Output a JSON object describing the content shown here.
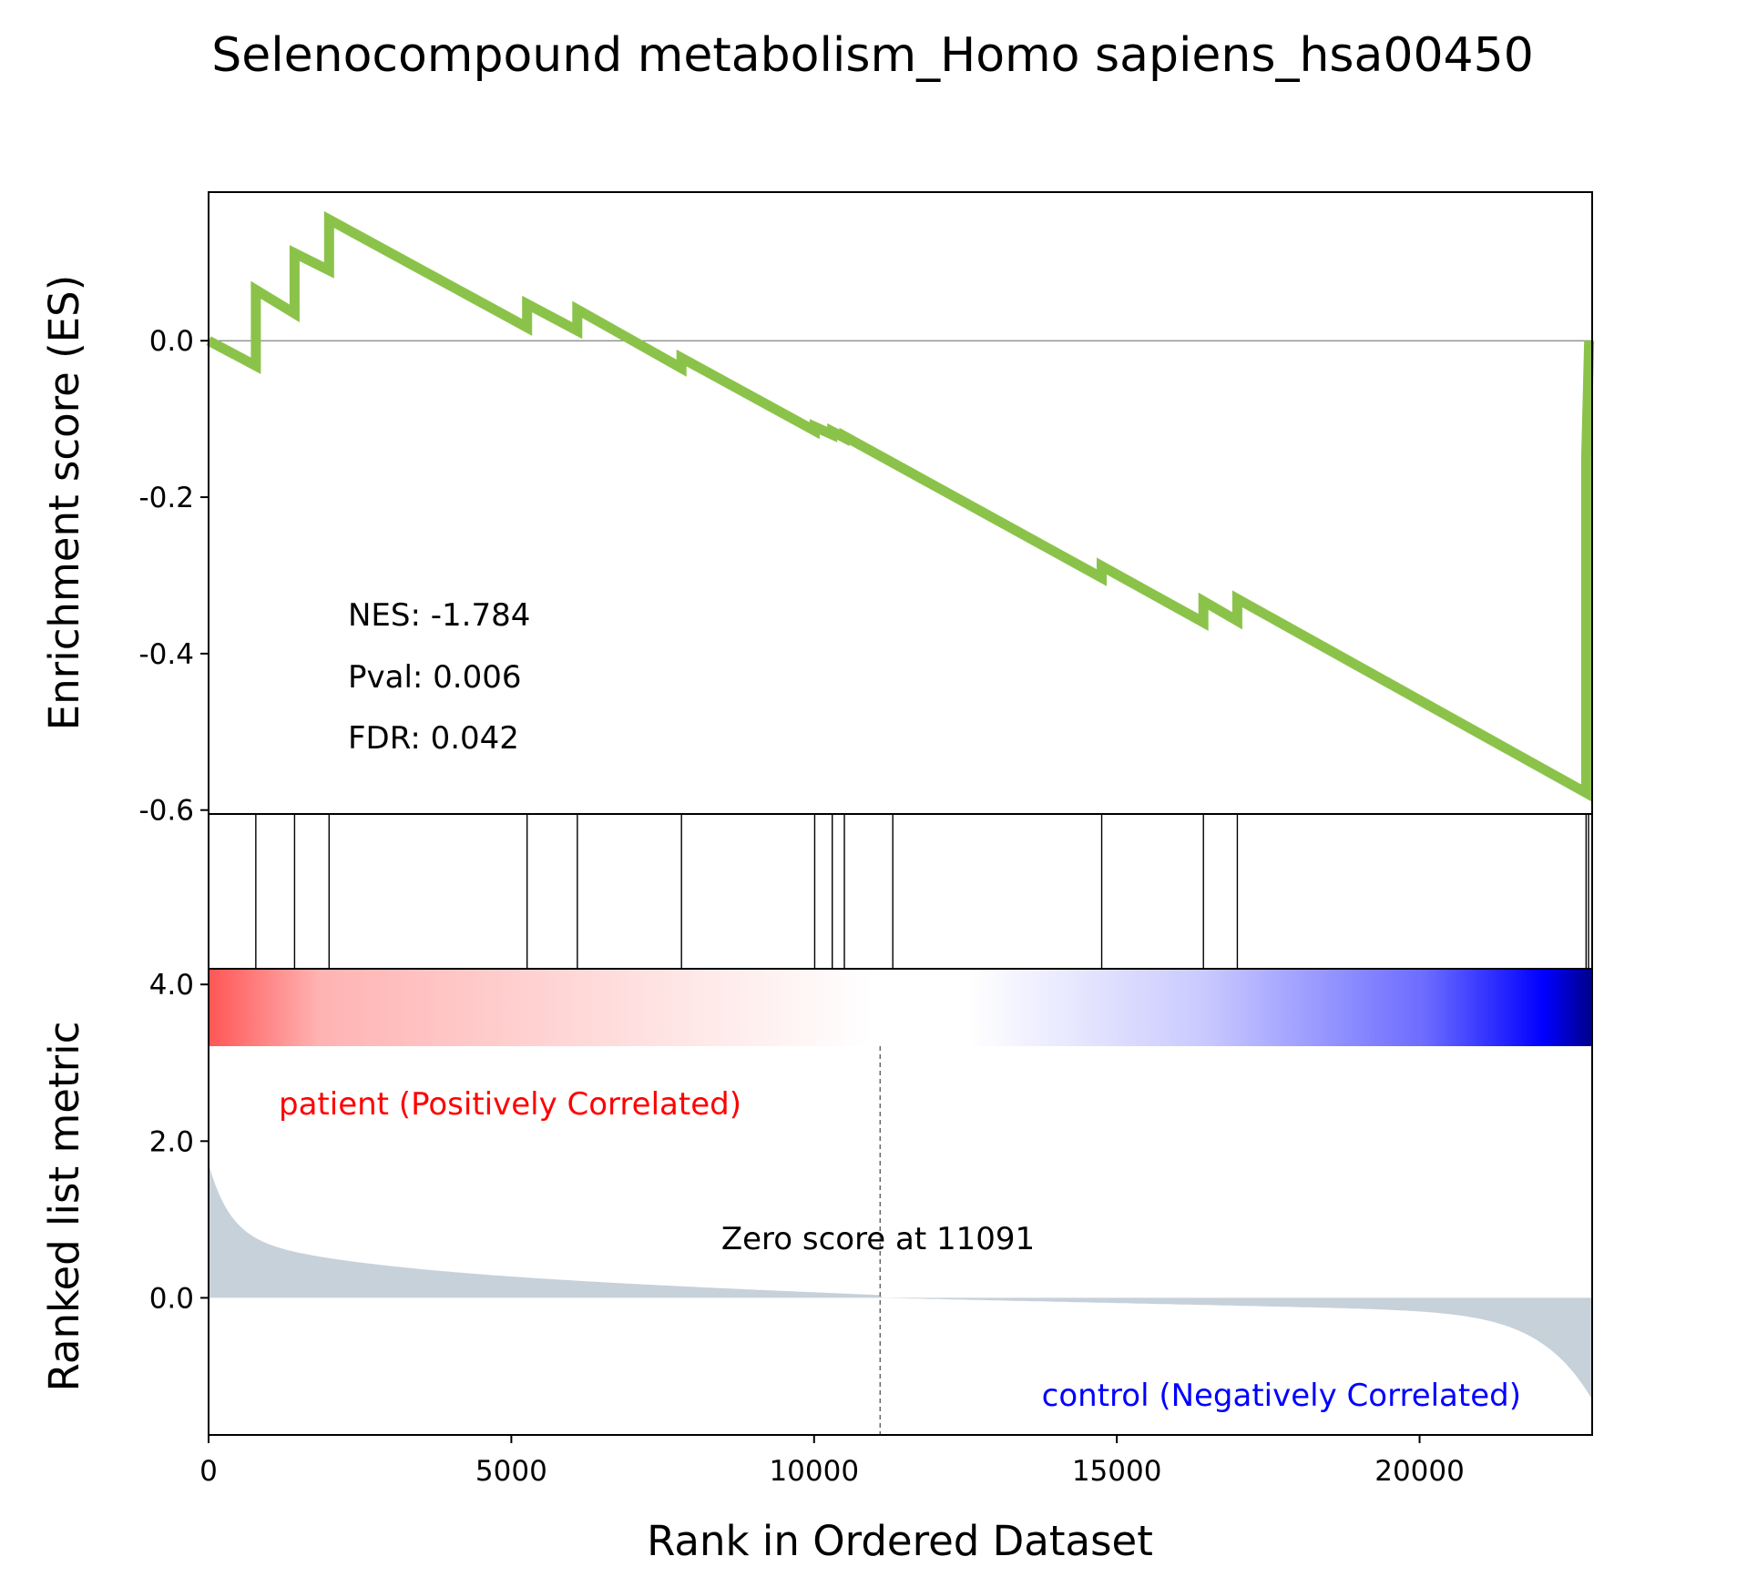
{
  "chart_data": {
    "type": "line",
    "title": "Selenocompound metabolism_Homo sapiens_hsa00450",
    "es_panel": {
      "ylabel": "Enrichment score (ES)",
      "yticks": [
        "0.0",
        "-0.2",
        "-0.4",
        "-0.6"
      ],
      "ylim": [
        -0.605,
        0.19
      ],
      "line_color": "#8bc34a",
      "series": {
        "x": [
          0,
          780,
          780,
          1420,
          1420,
          1990,
          1990,
          5260,
          5260,
          6090,
          6090,
          7810,
          7810,
          10010,
          10010,
          10300,
          10300,
          10500,
          10500,
          11300,
          11300,
          14750,
          14750,
          16430,
          16430,
          16990,
          16990,
          22750,
          22750,
          22750,
          22750,
          22800,
          22800
        ],
        "y": [
          0.0,
          -0.032,
          0.065,
          0.035,
          0.112,
          0.09,
          0.155,
          0.017,
          0.047,
          0.013,
          0.04,
          -0.035,
          -0.022,
          -0.115,
          -0.11,
          -0.12,
          -0.116,
          -0.124,
          -0.122,
          -0.156,
          -0.156,
          -0.303,
          -0.288,
          -0.36,
          -0.333,
          -0.358,
          -0.33,
          -0.578,
          -0.44,
          -0.3,
          -0.15,
          0.0,
          0.0
        ]
      },
      "stats": {
        "nes": "NES: -1.784",
        "pval": "Pval: 0.006",
        "fdr": "FDR: 0.042"
      }
    },
    "hits": [
      780,
      1420,
      1990,
      5260,
      6090,
      7810,
      10010,
      10300,
      10500,
      11300,
      14750,
      16430,
      16990,
      22750,
      22790
    ],
    "ranked_panel": {
      "ylabel": "Ranked list metric",
      "yticks": [
        "4.0",
        "2.0",
        "0.0"
      ],
      "ylim": [
        -1.75,
        4.2
      ],
      "fill_color": "#c7d1da",
      "zero_cross": 11091,
      "zero_label": "Zero score at 11091",
      "positive_label": "patient (Positively Correlated)",
      "negative_label": "control (Negatively Correlated)",
      "positive_color": "#ff0000",
      "negative_color": "#0000ff"
    },
    "xaxis": {
      "label": "Rank in Ordered Dataset",
      "xlim": [
        0,
        22850
      ],
      "ticks": [
        0,
        5000,
        10000,
        15000,
        20000
      ],
      "tick_labels": [
        "0",
        "5000",
        "10000",
        "15000",
        "20000"
      ]
    }
  }
}
